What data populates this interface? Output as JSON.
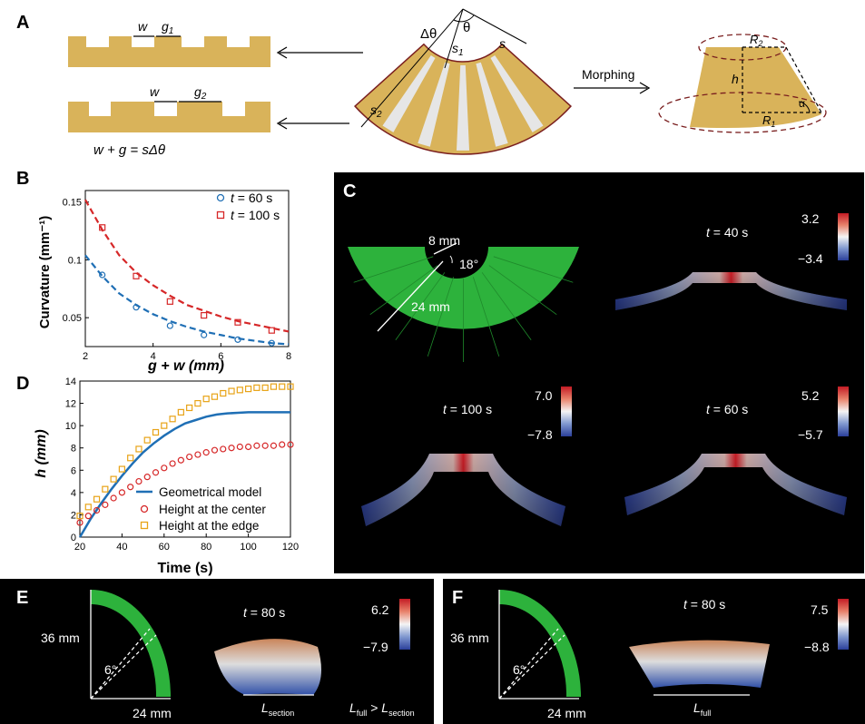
{
  "panels": {
    "A": "A",
    "B": "B",
    "C": "C",
    "D": "D",
    "E": "E",
    "F": "F"
  },
  "panelA": {
    "w_label": "w",
    "g1_label": "g",
    "g1_sub": "1",
    "g2_label": "g",
    "g2_sub": "2",
    "equation": "w + g = sΔθ",
    "dtheta": "Δθ",
    "theta": "θ",
    "s1": "s",
    "s1_sub": "1",
    "s": "s",
    "s2": "s",
    "s2_sub": "2",
    "morphing": "Morphing",
    "R2": "R",
    "R2_sub": "2",
    "R1": "R",
    "R1_sub": "1",
    "h": "h",
    "alpha": "α",
    "colors": {
      "tan": "#d9b35a",
      "stripe": "#e6e6e6",
      "edge": "#7a1f1f"
    }
  },
  "panelB": {
    "ylabel": "Curvature (mm⁻¹)",
    "xlabel": "g + w (mm)",
    "chart_data": {
      "type": "scatter",
      "xlim": [
        2,
        8
      ],
      "ylim": [
        0.025,
        0.16
      ],
      "xticks": [
        2,
        4,
        6,
        8
      ],
      "yticks": [
        0.05,
        0.1,
        0.15
      ],
      "ytick_labels": [
        "0.05",
        "0.1",
        "0.15"
      ],
      "series": [
        {
          "name": "t = 60 s",
          "color": "#1f6fb5",
          "marker": "circle",
          "x": [
            2.5,
            3.5,
            4.5,
            5.5,
            6.5,
            7.5
          ],
          "y": [
            0.087,
            0.059,
            0.043,
            0.035,
            0.031,
            0.028
          ],
          "fit": {
            "x": [
              2,
              2.5,
              3,
              3.5,
              4,
              4.5,
              5,
              5.5,
              6,
              6.5,
              7,
              7.5,
              8
            ],
            "y": [
              0.104,
              0.086,
              0.071,
              0.061,
              0.053,
              0.047,
              0.042,
              0.038,
              0.035,
              0.032,
              0.03,
              0.028,
              0.027
            ]
          }
        },
        {
          "name": "t = 100 s",
          "color": "#d62728",
          "marker": "square",
          "x": [
            2.5,
            3.5,
            4.5,
            5.5,
            6.5,
            7.5
          ],
          "y": [
            0.128,
            0.086,
            0.064,
            0.052,
            0.046,
            0.039
          ],
          "fit": {
            "x": [
              2,
              2.5,
              3,
              3.5,
              4,
              4.5,
              5,
              5.5,
              6,
              6.5,
              7,
              7.5,
              8
            ],
            "y": [
              0.152,
              0.126,
              0.104,
              0.089,
              0.078,
              0.069,
              0.061,
              0.056,
              0.051,
              0.047,
              0.044,
              0.041,
              0.038
            ]
          }
        }
      ],
      "legend_placement": "top-right"
    },
    "legend": [
      {
        "t": "t",
        "rest": " = 60 s"
      },
      {
        "t": "t",
        "rest": " = 100 s"
      }
    ]
  },
  "panelC": {
    "dim_small": "8 mm",
    "angle": "18°",
    "dim_large": "24 mm",
    "views": [
      {
        "t": "t",
        "label": " = 40 s",
        "max": "3.2",
        "min": "−3.4"
      },
      {
        "t": "t",
        "label": " = 100 s",
        "max": "7.0",
        "min": "−7.8"
      },
      {
        "t": "t",
        "label": " = 60 s",
        "max": "5.2",
        "min": "−5.7"
      }
    ],
    "colors": {
      "green": "#2db23c",
      "hot": "#c41b24",
      "cold": "#2b3f9a"
    }
  },
  "panelD": {
    "ylabel": "h (mm)",
    "xlabel": "Time (s)",
    "chart_data": {
      "type": "line",
      "xlim": [
        20,
        120
      ],
      "ylim": [
        0,
        14
      ],
      "xticks": [
        20,
        40,
        60,
        80,
        100,
        120
      ],
      "yticks": [
        0,
        2,
        4,
        6,
        8,
        10,
        12,
        14
      ],
      "series": [
        {
          "name": "Geometrical model",
          "color": "#1f6fb5",
          "style": "line",
          "x": [
            20,
            25,
            30,
            35,
            40,
            45,
            50,
            55,
            60,
            65,
            70,
            75,
            80,
            85,
            90,
            95,
            100,
            105,
            110,
            115,
            120
          ],
          "y": [
            0,
            1.6,
            3.0,
            4.3,
            5.5,
            6.6,
            7.6,
            8.4,
            9.1,
            9.7,
            10.2,
            10.5,
            10.8,
            11.0,
            11.1,
            11.15,
            11.2,
            11.2,
            11.2,
            11.2,
            11.2
          ]
        },
        {
          "name": "Height at the center",
          "color": "#d62728",
          "style": "circle",
          "x": [
            20,
            24,
            28,
            32,
            36,
            40,
            44,
            48,
            52,
            56,
            60,
            64,
            68,
            72,
            76,
            80,
            84,
            88,
            92,
            96,
            100,
            104,
            108,
            112,
            116,
            120
          ],
          "y": [
            1.3,
            1.9,
            2.4,
            2.9,
            3.5,
            4.0,
            4.5,
            5.0,
            5.4,
            5.8,
            6.2,
            6.6,
            6.9,
            7.2,
            7.4,
            7.6,
            7.8,
            7.9,
            8.0,
            8.1,
            8.1,
            8.2,
            8.2,
            8.2,
            8.3,
            8.3
          ]
        },
        {
          "name": "Height at the edge",
          "color": "#e8a317",
          "style": "square",
          "x": [
            20,
            24,
            28,
            32,
            36,
            40,
            44,
            48,
            52,
            56,
            60,
            64,
            68,
            72,
            76,
            80,
            84,
            88,
            92,
            96,
            100,
            104,
            108,
            112,
            116,
            120
          ],
          "y": [
            1.9,
            2.7,
            3.4,
            4.3,
            5.2,
            6.1,
            7.1,
            7.9,
            8.7,
            9.4,
            10.0,
            10.6,
            11.2,
            11.6,
            12.0,
            12.4,
            12.6,
            12.9,
            13.1,
            13.2,
            13.3,
            13.4,
            13.4,
            13.5,
            13.5,
            13.5
          ]
        }
      ],
      "legend_placement": "bottom-right"
    }
  },
  "panelE": {
    "height": "36 mm",
    "angle": "6°",
    "width": "24 mm",
    "t": "t",
    "tlabel": " = 80 s",
    "max": "6.2",
    "min": "−7.9",
    "L": "L",
    "Lsub": "section",
    "Lfull": "L",
    "Lfull_sub": "full",
    "gt": ">",
    "Lsec2": "L",
    "Lsec2_sub": "section"
  },
  "panelF": {
    "height": "36 mm",
    "angle": "6°",
    "width": "24 mm",
    "t": "t",
    "tlabel": " = 80 s",
    "max": "7.5",
    "min": "−8.8",
    "L": "L",
    "Lsub": "full"
  }
}
